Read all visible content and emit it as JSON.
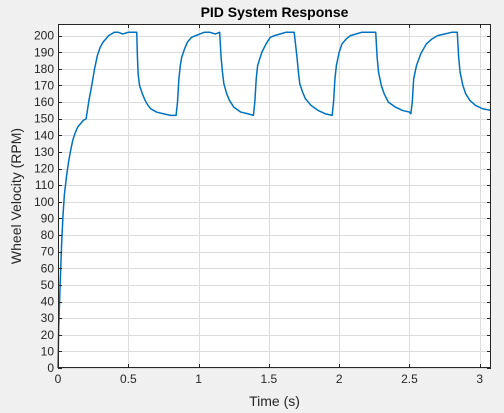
{
  "chart_data": {
    "type": "line",
    "title": "PID System Response",
    "xlabel": "Time (s)",
    "ylabel": "Wheel Velocity (RPM)",
    "xlim": [
      0,
      3.08
    ],
    "ylim": [
      0,
      207
    ],
    "x_ticks": [
      0,
      0.5,
      1,
      1.5,
      2,
      2.5,
      3
    ],
    "x_tick_labels": [
      "0",
      "0.5",
      "1",
      "1.5",
      "2",
      "2.5",
      "3"
    ],
    "y_ticks": [
      0,
      10,
      20,
      30,
      40,
      50,
      60,
      70,
      80,
      90,
      100,
      110,
      120,
      130,
      140,
      150,
      160,
      170,
      180,
      190,
      200
    ],
    "y_tick_labels": [
      "0",
      "10",
      "20",
      "30",
      "40",
      "50",
      "60",
      "70",
      "80",
      "90",
      "100",
      "110",
      "120",
      "130",
      "140",
      "150",
      "160",
      "170",
      "180",
      "190",
      "200"
    ],
    "grid": true,
    "series": [
      {
        "color": "#0072bd",
        "x": [
          0,
          0.005,
          0.015,
          0.025,
          0.035,
          0.045,
          0.06,
          0.075,
          0.09,
          0.105,
          0.12,
          0.14,
          0.16,
          0.18,
          0.2,
          0.22,
          0.24,
          0.26,
          0.28,
          0.3,
          0.32,
          0.34,
          0.36,
          0.38,
          0.4,
          0.43,
          0.46,
          0.5,
          0.54,
          0.56,
          0.565,
          0.57,
          0.58,
          0.6,
          0.62,
          0.64,
          0.66,
          0.7,
          0.75,
          0.8,
          0.84,
          0.85,
          0.86,
          0.87,
          0.88,
          0.9,
          0.92,
          0.95,
          0.98,
          1.01,
          1.04,
          1.08,
          1.12,
          1.15,
          1.16,
          1.17,
          1.18,
          1.2,
          1.22,
          1.25,
          1.3,
          1.35,
          1.39,
          1.4,
          1.41,
          1.42,
          1.45,
          1.48,
          1.51,
          1.54,
          1.58,
          1.62,
          1.68,
          1.7,
          1.71,
          1.72,
          1.74,
          1.76,
          1.8,
          1.85,
          1.9,
          1.95,
          1.96,
          1.97,
          1.98,
          2.0,
          2.02,
          2.05,
          2.08,
          2.12,
          2.16,
          2.2,
          2.26,
          2.27,
          2.28,
          2.3,
          2.32,
          2.35,
          2.4,
          2.45,
          2.5,
          2.51,
          2.52,
          2.53,
          2.55,
          2.58,
          2.62,
          2.66,
          2.7,
          2.75,
          2.8,
          2.84,
          2.85,
          2.86,
          2.88,
          2.9,
          2.93,
          2.97,
          3.02,
          3.08
        ],
        "y": [
          0,
          24,
          50,
          73,
          91,
          104,
          115,
          124,
          131,
          137,
          141,
          145,
          147,
          149,
          150,
          161,
          170,
          180,
          188,
          193,
          196,
          198,
          200,
          201,
          202,
          202,
          201,
          202,
          202,
          202,
          187,
          177,
          170,
          165,
          161,
          158,
          156,
          154,
          153,
          152,
          152,
          160,
          174,
          182,
          187,
          192,
          196,
          199,
          200,
          201,
          202,
          202,
          201,
          202,
          187,
          178,
          171,
          165,
          161,
          157,
          154,
          153,
          152,
          160,
          174,
          182,
          190,
          195,
          199,
          200,
          201,
          202,
          202,
          187,
          178,
          171,
          166,
          162,
          158,
          155,
          153,
          152,
          160,
          174,
          182,
          190,
          195,
          198,
          200,
          201,
          202,
          202,
          202,
          187,
          178,
          170,
          165,
          160,
          157,
          155,
          154,
          153,
          160,
          174,
          182,
          189,
          195,
          198,
          200,
          201,
          202,
          202,
          187,
          178,
          170,
          165,
          161,
          158,
          156,
          155
        ]
      }
    ]
  }
}
